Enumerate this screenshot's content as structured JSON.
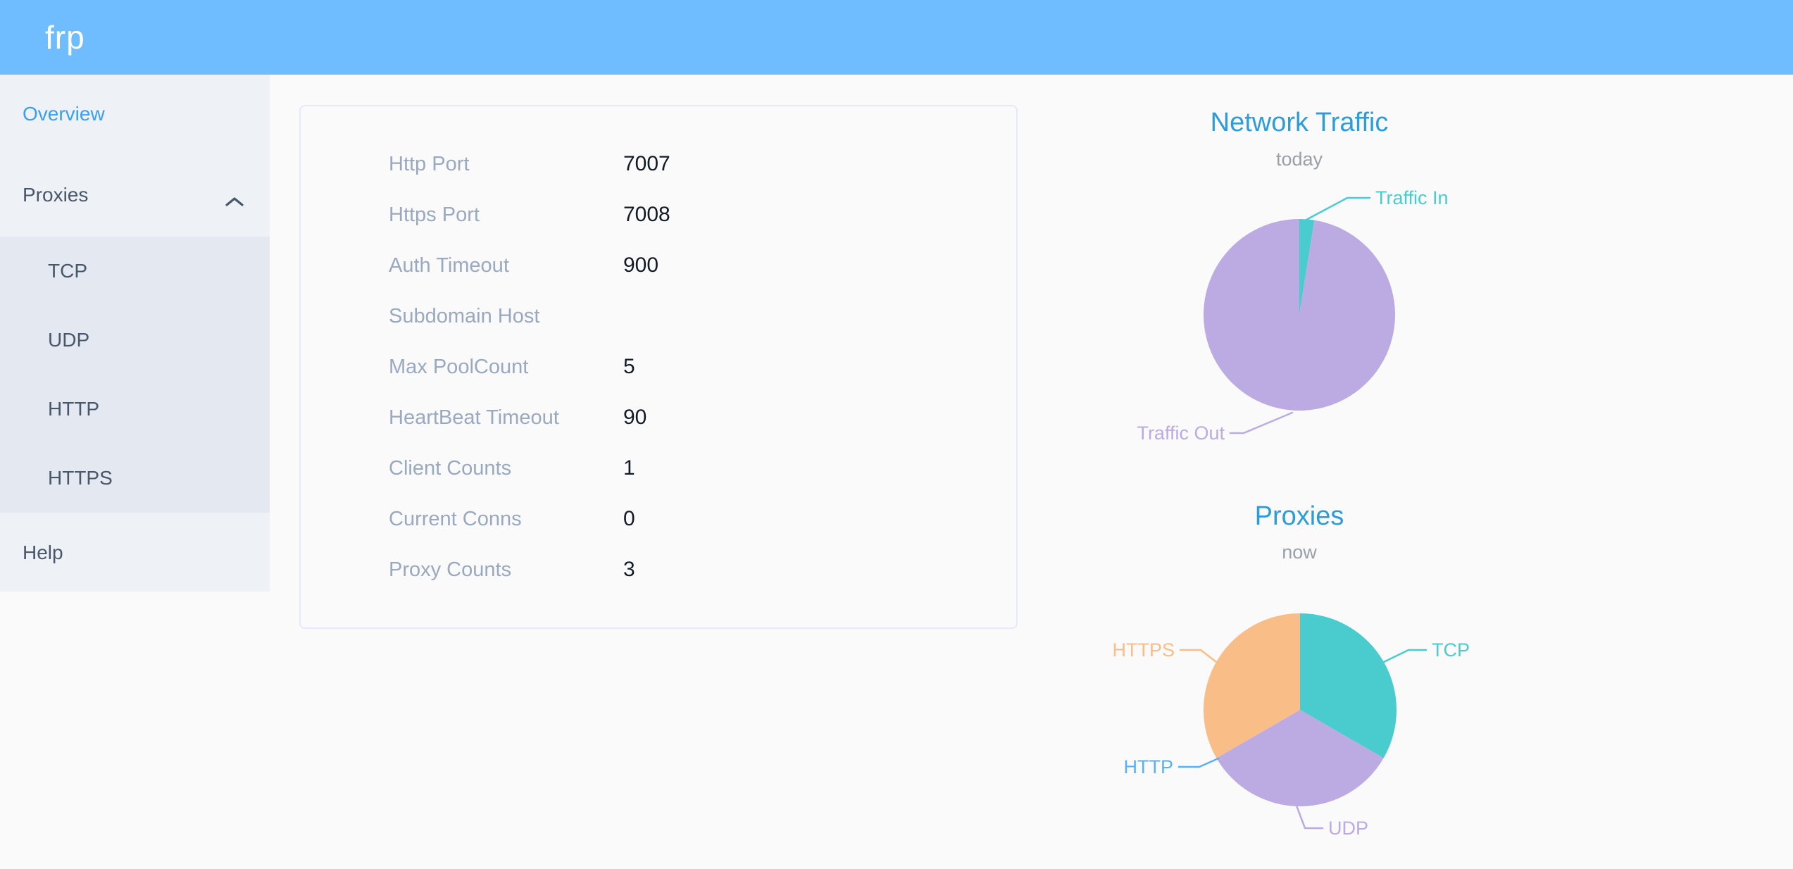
{
  "header": {
    "logo": "frp"
  },
  "sidebar": {
    "items": [
      {
        "label": "Overview",
        "active": true
      },
      {
        "label": "Proxies",
        "expanded": true
      },
      {
        "label": "Help"
      }
    ],
    "proxies_children": [
      {
        "label": "TCP"
      },
      {
        "label": "UDP"
      },
      {
        "label": "HTTP"
      },
      {
        "label": "HTTPS"
      }
    ]
  },
  "server_info": {
    "rows": [
      {
        "label": "Http Port",
        "value": "7007"
      },
      {
        "label": "Https Port",
        "value": "7008"
      },
      {
        "label": "Auth Timeout",
        "value": "900"
      },
      {
        "label": "Subdomain Host",
        "value": ""
      },
      {
        "label": "Max PoolCount",
        "value": "5"
      },
      {
        "label": "HeartBeat Timeout",
        "value": "90"
      },
      {
        "label": "Client Counts",
        "value": "1"
      },
      {
        "label": "Current Conns",
        "value": "0"
      },
      {
        "label": "Proxy Counts",
        "value": "3"
      }
    ]
  },
  "chart_data": [
    {
      "type": "pie",
      "title": "Network Traffic",
      "subtitle": "today",
      "legend_position": "none",
      "note": "slice sizes read from pie as percent of circle",
      "series": [
        {
          "name": "Traffic In",
          "value": 2.5,
          "color": "#4accce"
        },
        {
          "name": "Traffic Out",
          "value": 97.5,
          "color": "#bcaae2"
        }
      ]
    },
    {
      "type": "pie",
      "title": "Proxies",
      "subtitle": "now",
      "legend_position": "none",
      "note": "counts by proxy type; HTTP count is 0 (label only, no slice)",
      "series": [
        {
          "name": "TCP",
          "value": 1,
          "color": "#4accce"
        },
        {
          "name": "UDP",
          "value": 1,
          "color": "#bcaae2"
        },
        {
          "name": "HTTP",
          "value": 0,
          "color": "#5ab1ef"
        },
        {
          "name": "HTTPS",
          "value": 1,
          "color": "#f9bd88"
        }
      ]
    }
  ],
  "theme": {
    "header_bg": "#6fbcff",
    "sidebar_bg": "#eef1f6",
    "submenu_bg": "#e3e8f1",
    "menu_text": "#48576a",
    "active_menu_text": "#3a9ff2",
    "card_border": "#e6eaf8",
    "label_gray": "#99a9bf",
    "value_text": "#131b26",
    "chart_title_blue": "#2d9cdb",
    "chart_subtitle_gray": "#9aa0a8",
    "page_bg": "#fafafa"
  }
}
